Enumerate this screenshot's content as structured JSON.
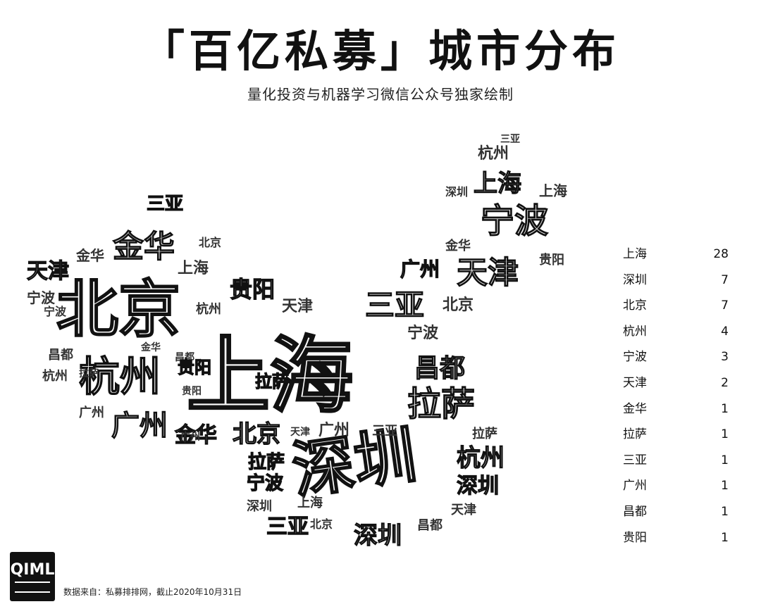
{
  "title": "「百亿私募」城市分布",
  "subtitle": "量化投资与机器学习微信公众号独家绘制",
  "source": "数据来自：私募排排网，截止2020年10月31日",
  "logo_text": "QIML",
  "chart_data": {
    "type": "wordcloud",
    "categories": [
      "上海",
      "深圳",
      "北京",
      "杭州",
      "宁波",
      "天津",
      "金华",
      "拉萨",
      "三亚",
      "广州",
      "昌都",
      "贵阳"
    ],
    "values": [
      28,
      7,
      7,
      4,
      3,
      2,
      1,
      1,
      1,
      1,
      1,
      1
    ]
  }
}
